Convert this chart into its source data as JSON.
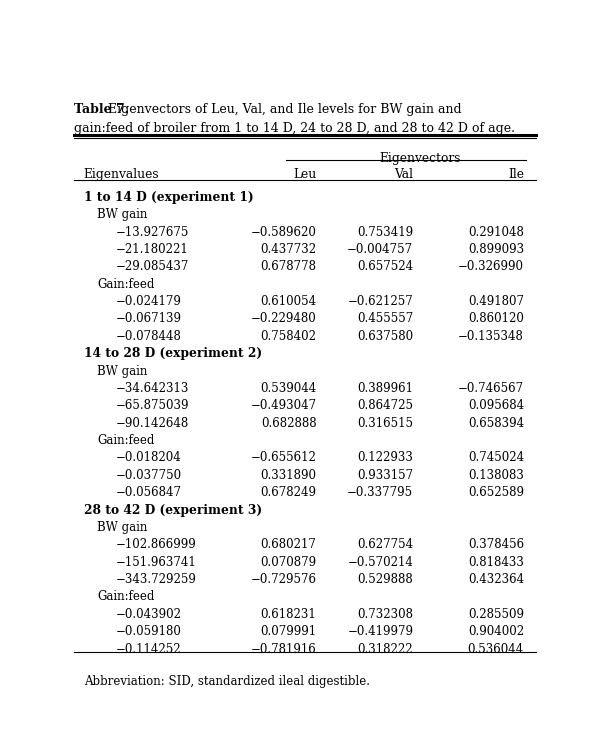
{
  "title_bold": "Table 7.",
  "title_rest": " Eigenvectors of Leu, Val, and Ile levels for BW gain and",
  "title_line2": "gain:feed of broiler from 1 to 14 D, 24 to 28 D, and 28 to 42 D of age.",
  "header_top": "Eigenvectors",
  "col_headers": [
    "Eigenvalues",
    "Leu",
    "Val",
    "Ile"
  ],
  "footnote": "Abbreviation: SID, standardized ileal digestible.",
  "sections": [
    {
      "section_label": "1 to 14 D (experiment 1)",
      "subsections": [
        {
          "sub_label": "BW gain",
          "rows": [
            [
              "−13.927675",
              "−0.589620",
              "0.753419",
              "0.291048"
            ],
            [
              "−21.180221",
              "0.437732",
              "−0.004757",
              "0.899093"
            ],
            [
              "−29.085437",
              "0.678778",
              "0.657524",
              "−0.326990"
            ]
          ]
        },
        {
          "sub_label": "Gain:feed",
          "rows": [
            [
              "−0.024179",
              "0.610054",
              "−0.621257",
              "0.491807"
            ],
            [
              "−0.067139",
              "−0.229480",
              "0.455557",
              "0.860120"
            ],
            [
              "−0.078448",
              "0.758402",
              "0.637580",
              "−0.135348"
            ]
          ]
        }
      ]
    },
    {
      "section_label": "14 to 28 D (experiment 2)",
      "subsections": [
        {
          "sub_label": "BW gain",
          "rows": [
            [
              "−34.642313",
              "0.539044",
              "0.389961",
              "−0.746567"
            ],
            [
              "−65.875039",
              "−0.493047",
              "0.864725",
              "0.095684"
            ],
            [
              "−90.142648",
              "0.682888",
              "0.316515",
              "0.658394"
            ]
          ]
        },
        {
          "sub_label": "Gain:feed",
          "rows": [
            [
              "−0.018204",
              "−0.655612",
              "0.122933",
              "0.745024"
            ],
            [
              "−0.037750",
              "0.331890",
              "0.933157",
              "0.138083"
            ],
            [
              "−0.056847",
              "0.678249",
              "−0.337795",
              "0.652589"
            ]
          ]
        }
      ]
    },
    {
      "section_label": "28 to 42 D (experiment 3)",
      "subsections": [
        {
          "sub_label": "BW gain",
          "rows": [
            [
              "−102.866999",
              "0.680217",
              "0.627754",
              "0.378456"
            ],
            [
              "−151.963741",
              "0.070879",
              "−0.570214",
              "0.818433"
            ],
            [
              "−343.729259",
              "−0.729576",
              "0.529888",
              "0.432364"
            ]
          ]
        },
        {
          "sub_label": "Gain:feed",
          "rows": [
            [
              "−0.043902",
              "0.618231",
              "0.732308",
              "0.285509"
            ],
            [
              "−0.059180",
              "0.079991",
              "−0.419979",
              "0.904002"
            ],
            [
              "−0.114252",
              "−0.781916",
              "0.318222",
              "0.536044"
            ]
          ]
        }
      ]
    }
  ]
}
